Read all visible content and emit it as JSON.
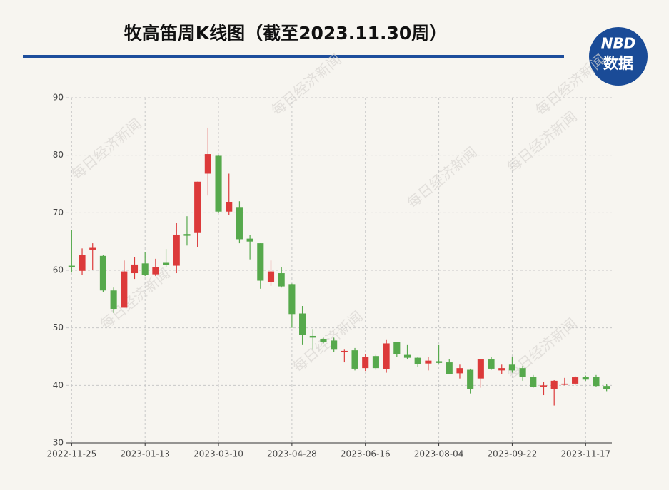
{
  "chart_data": {
    "type": "candlestick",
    "title": "牧高笛周K线图（截至2023.11.30周）",
    "logo": {
      "brand": "NBD",
      "label": "数据"
    },
    "watermark": "每日经济新闻",
    "categories": [
      "2022-11-25",
      null,
      null,
      null,
      null,
      null,
      null,
      "2023-01-13",
      null,
      null,
      null,
      null,
      null,
      null,
      "2023-03-10",
      null,
      null,
      null,
      null,
      null,
      null,
      "2023-04-28",
      null,
      null,
      null,
      null,
      null,
      null,
      "2023-06-16",
      null,
      null,
      null,
      null,
      null,
      null,
      "2023-08-04",
      null,
      null,
      null,
      null,
      null,
      null,
      "2023-09-22",
      null,
      null,
      null,
      null,
      null,
      null,
      "2023-11-17",
      null,
      null
    ],
    "open": [
      60.8,
      59.9,
      63.6,
      62.5,
      56.5,
      53.5,
      59.5,
      61.2,
      59.3,
      61.3,
      60.8,
      66.3,
      66.6,
      76.8,
      79.9,
      70.2,
      71.0,
      65.5,
      64.7,
      58.0,
      59.5,
      57.6,
      52.5,
      48.6,
      48.1,
      47.8,
      45.9,
      46.1,
      43.0,
      45.1,
      42.8,
      47.5,
      45.3,
      44.8,
      43.8,
      44.2,
      44.0,
      42.1,
      42.7,
      41.2,
      44.5,
      42.6,
      43.6,
      43.0,
      41.5,
      39.8,
      39.3,
      40.1,
      40.3,
      41.5,
      41.5,
      39.9
    ],
    "close": [
      60.5,
      62.7,
      63.9,
      56.5,
      53.3,
      59.8,
      61.0,
      59.2,
      60.6,
      60.9,
      66.2,
      66.0,
      75.4,
      80.2,
      70.2,
      71.9,
      65.4,
      65.0,
      58.2,
      59.8,
      57.2,
      52.4,
      48.8,
      48.3,
      47.6,
      46.2,
      46.0,
      42.9,
      45.0,
      43.0,
      47.3,
      45.4,
      44.8,
      43.7,
      44.3,
      43.9,
      42.0,
      43.0,
      39.3,
      44.5,
      42.9,
      43.0,
      42.6,
      41.5,
      39.7,
      40.0,
      40.8,
      40.3,
      41.4,
      41.0,
      39.9,
      39.3
    ],
    "high": [
      67.0,
      63.8,
      64.7,
      62.7,
      57.0,
      61.7,
      62.3,
      63.2,
      62.0,
      63.7,
      68.2,
      69.4,
      75.4,
      84.8,
      80.0,
      76.8,
      72.0,
      66.2,
      64.7,
      61.7,
      60.6,
      57.7,
      53.8,
      49.8,
      48.3,
      48.3,
      46.2,
      46.5,
      45.4,
      45.3,
      48.0,
      47.6,
      47.0,
      44.9,
      44.9,
      47.0,
      44.6,
      43.6,
      42.9,
      44.6,
      45.0,
      43.6,
      45.0,
      43.4,
      41.8,
      40.6,
      40.9,
      41.3,
      41.6,
      41.7,
      41.8,
      40.2
    ],
    "low": [
      59.6,
      59.2,
      60.0,
      56.2,
      52.6,
      53.5,
      58.5,
      59.0,
      59.0,
      60.5,
      59.5,
      64.3,
      64.0,
      73.0,
      70.0,
      69.6,
      64.7,
      61.9,
      56.8,
      57.3,
      57.0,
      50.0,
      47.0,
      46.2,
      47.3,
      45.8,
      44.0,
      42.6,
      42.5,
      42.7,
      42.2,
      45.0,
      44.5,
      43.2,
      42.6,
      43.8,
      41.9,
      41.2,
      38.6,
      39.6,
      42.7,
      41.9,
      42.2,
      40.8,
      39.6,
      38.3,
      36.5,
      40.0,
      40.0,
      40.8,
      39.8,
      39.0
    ],
    "up_color": "#dc3a3a",
    "down_color": "#56a94c",
    "ylim": [
      30,
      90
    ],
    "yticks": [
      30,
      40,
      50,
      60,
      70,
      80,
      90
    ],
    "grid": true
  }
}
